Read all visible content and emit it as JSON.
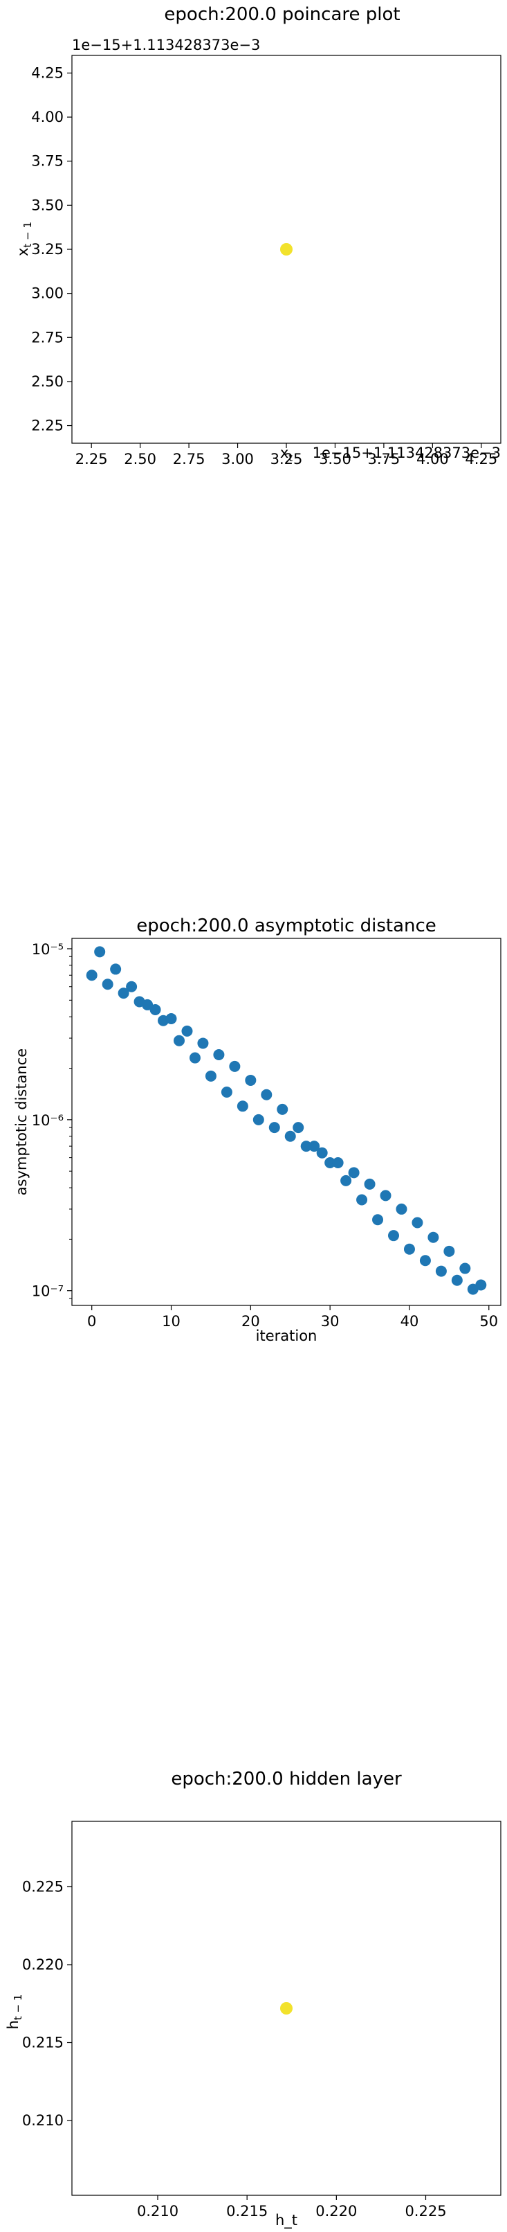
{
  "chart_data": [
    {
      "type": "scatter",
      "title": "epoch:200.0 poincare plot",
      "xlabel": "x_t",
      "ylabel": "x_{t-1}",
      "offset_text_x": "1e−15+1.113428373e−3",
      "offset_text_y": "1e−15+1.113428373e−3",
      "xlim": [
        2.15,
        4.35
      ],
      "ylim": [
        2.15,
        4.35
      ],
      "xticks": [
        "2.25",
        "2.50",
        "2.75",
        "3.00",
        "3.25",
        "3.50",
        "3.75",
        "4.00",
        "4.25"
      ],
      "yticks": [
        "2.25",
        "2.50",
        "2.75",
        "3.00",
        "3.25",
        "3.50",
        "3.75",
        "4.00",
        "4.25"
      ],
      "points": [
        {
          "x": 3.25,
          "y": 3.25
        }
      ],
      "color": "#f2e22c",
      "grid": false
    },
    {
      "type": "scatter",
      "title": "epoch:200.0 asymptotic distance",
      "xlabel": "iteration",
      "ylabel": "asymptotic distance",
      "yscale": "log",
      "xlim": [
        -2.5,
        51.5
      ],
      "ylim": [
        8.2e-08,
        1.15e-05
      ],
      "xticks": [
        "0",
        "10",
        "20",
        "30",
        "40",
        "50"
      ],
      "yticks": [
        {
          "value": 1e-05,
          "label": "10⁻⁵"
        },
        {
          "value": 1e-06,
          "label": "10⁻⁶"
        },
        {
          "value": 1e-07,
          "label": "10⁻⁷"
        }
      ],
      "x": [
        0,
        1,
        2,
        3,
        4,
        5,
        6,
        7,
        8,
        9,
        10,
        11,
        12,
        13,
        14,
        15,
        16,
        17,
        18,
        19,
        20,
        21,
        22,
        23,
        24,
        25,
        26,
        27,
        28,
        29,
        30,
        31,
        32,
        33,
        34,
        35,
        36,
        37,
        38,
        39,
        40,
        41,
        42,
        43,
        44,
        45,
        46,
        47,
        48,
        49
      ],
      "y": [
        7e-06,
        9.6e-06,
        6.2e-06,
        7.6e-06,
        5.5e-06,
        6e-06,
        4.9e-06,
        4.7e-06,
        4.4e-06,
        3.8e-06,
        3.9e-06,
        2.9e-06,
        3.3e-06,
        2.3e-06,
        2.8e-06,
        1.8e-06,
        2.4e-06,
        1.45e-06,
        2.05e-06,
        1.2e-06,
        1.7e-06,
        1e-06,
        1.4e-06,
        9e-07,
        1.15e-06,
        8e-07,
        9e-07,
        7e-07,
        7e-07,
        6.4e-07,
        5.6e-07,
        5.6e-07,
        4.4e-07,
        4.9e-07,
        3.4e-07,
        4.2e-07,
        2.6e-07,
        3.6e-07,
        2.1e-07,
        3e-07,
        1.75e-07,
        2.5e-07,
        1.5e-07,
        2.05e-07,
        1.3e-07,
        1.7e-07,
        1.15e-07,
        1.35e-07,
        1.02e-07,
        1.08e-07
      ],
      "color": "#1f77b4",
      "grid": false
    },
    {
      "type": "scatter",
      "title": "epoch:200.0 hidden layer",
      "xlabel": "h_t",
      "ylabel": "h_{t-1}",
      "xlim": [
        0.2052,
        0.2292
      ],
      "ylim": [
        0.2052,
        0.2292
      ],
      "xticks": [
        "0.210",
        "0.215",
        "0.220",
        "0.225"
      ],
      "yticks": [
        "0.210",
        "0.215",
        "0.220",
        "0.225"
      ],
      "points": [
        {
          "x": 0.2172,
          "y": 0.2172
        }
      ],
      "color": "#f2e22c",
      "grid": false
    }
  ]
}
